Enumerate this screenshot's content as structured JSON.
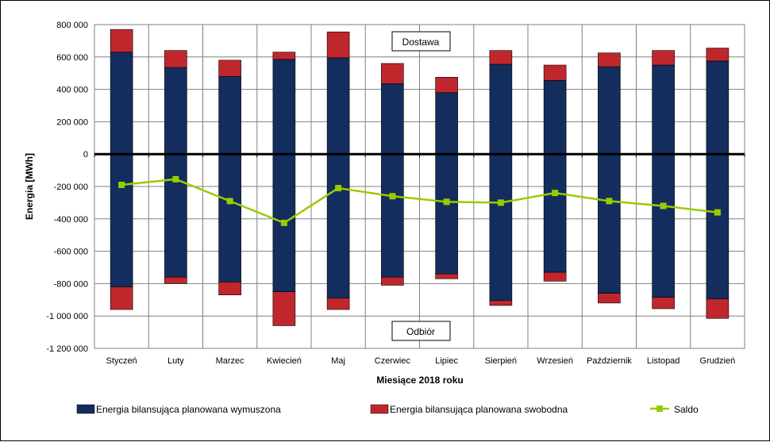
{
  "chart_data": {
    "type": "bar",
    "categories": [
      "Styczeń",
      "Luty",
      "Marzec",
      "Kwiecień",
      "Maj",
      "Czerwiec",
      "Lipiec",
      "Sierpień",
      "Wrzesień",
      "Październik",
      "Listopad",
      "Grudzień"
    ],
    "series": [
      {
        "name": "Energia bilansująca planowana wymuszona",
        "color": "#132d5e",
        "delivery": [
          630000,
          535000,
          480000,
          585000,
          595000,
          435000,
          380000,
          555000,
          455000,
          540000,
          550000,
          575000
        ],
        "withdrawal": [
          -820000,
          -760000,
          -790000,
          -850000,
          -890000,
          -760000,
          -740000,
          -905000,
          -730000,
          -860000,
          -885000,
          -895000
        ]
      },
      {
        "name": "Energia bilansująca planowana swobodna",
        "color": "#c0272d",
        "delivery": [
          140000,
          105000,
          100000,
          45000,
          160000,
          125000,
          95000,
          85000,
          95000,
          85000,
          90000,
          80000
        ],
        "withdrawal": [
          -140000,
          -40000,
          -80000,
          -210000,
          -70000,
          -50000,
          -30000,
          -30000,
          -55000,
          -60000,
          -70000,
          -120000
        ]
      }
    ],
    "line_series": {
      "name": "Saldo",
      "color": "#99cc00",
      "values": [
        -190000,
        -155000,
        -290000,
        -425000,
        -210000,
        -260000,
        -295000,
        -300000,
        -240000,
        -290000,
        -320000,
        -360000
      ]
    },
    "title": "",
    "xlabel": "Miesiące 2018 roku",
    "ylabel": "Energia [MWh]",
    "ylim": [
      -1200000,
      800000
    ],
    "yticks": [
      800000,
      600000,
      400000,
      200000,
      0,
      -200000,
      -400000,
      -600000,
      -800000,
      -1000000,
      -1200000
    ],
    "ytick_labels": [
      "800 000",
      "600 000",
      "400 000",
      "200 000",
      "0",
      "-200 000",
      "-400 000",
      "-600 000",
      "-800 000",
      "-1 000 000",
      "-1 200 000"
    ],
    "grid": true,
    "legend_position": "bottom",
    "annotations": {
      "top": "Dostawa",
      "bottom": "Odbiór"
    }
  }
}
